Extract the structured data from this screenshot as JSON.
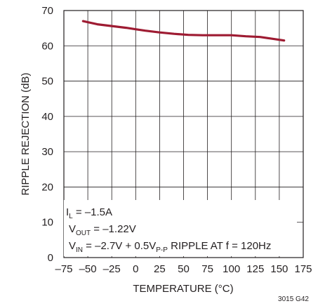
{
  "chart_data": {
    "type": "line",
    "xlabel": "TEMPERATURE (°C)",
    "ylabel": "RIPPLE REJECTION (dB)",
    "xlim": [
      -75,
      175
    ],
    "ylim": [
      0,
      70
    ],
    "x_ticks": [
      "–75",
      "–50",
      "–25",
      "0",
      "25",
      "50",
      "75",
      "100",
      "125",
      "150",
      "175"
    ],
    "x_tick_values": [
      -75,
      -50,
      -25,
      0,
      25,
      50,
      75,
      100,
      125,
      150,
      175
    ],
    "y_ticks": [
      "0",
      "10",
      "20",
      "30",
      "40",
      "50",
      "60",
      "70"
    ],
    "y_tick_values": [
      0,
      10,
      20,
      30,
      40,
      50,
      60,
      70
    ],
    "grid": true,
    "series": [
      {
        "color": "#9e1b32",
        "x": [
          -55,
          -40,
          -25,
          -10,
          0,
          10,
          25,
          40,
          55,
          70,
          85,
          100,
          115,
          130,
          140,
          150,
          155
        ],
        "y": [
          67.0,
          66.1,
          65.6,
          65.1,
          64.7,
          64.3,
          63.8,
          63.4,
          63.1,
          63.0,
          63.0,
          63.0,
          62.7,
          62.5,
          62.1,
          61.7,
          61.5
        ]
      }
    ],
    "annotations": {
      "line1": {
        "main": "I",
        "sub": "L",
        "rest": " = –1.5A"
      },
      "line2": {
        "main": "V",
        "sub": "OUT",
        "rest": " = –1.22V"
      },
      "line3": {
        "main": "V",
        "sub": "IN",
        "rest": " = –2.7V + 0.5V",
        "sub2": "P-P",
        "rest2": " RIPPLE AT f = 120Hz"
      }
    },
    "figure_id": "3015 G42"
  }
}
